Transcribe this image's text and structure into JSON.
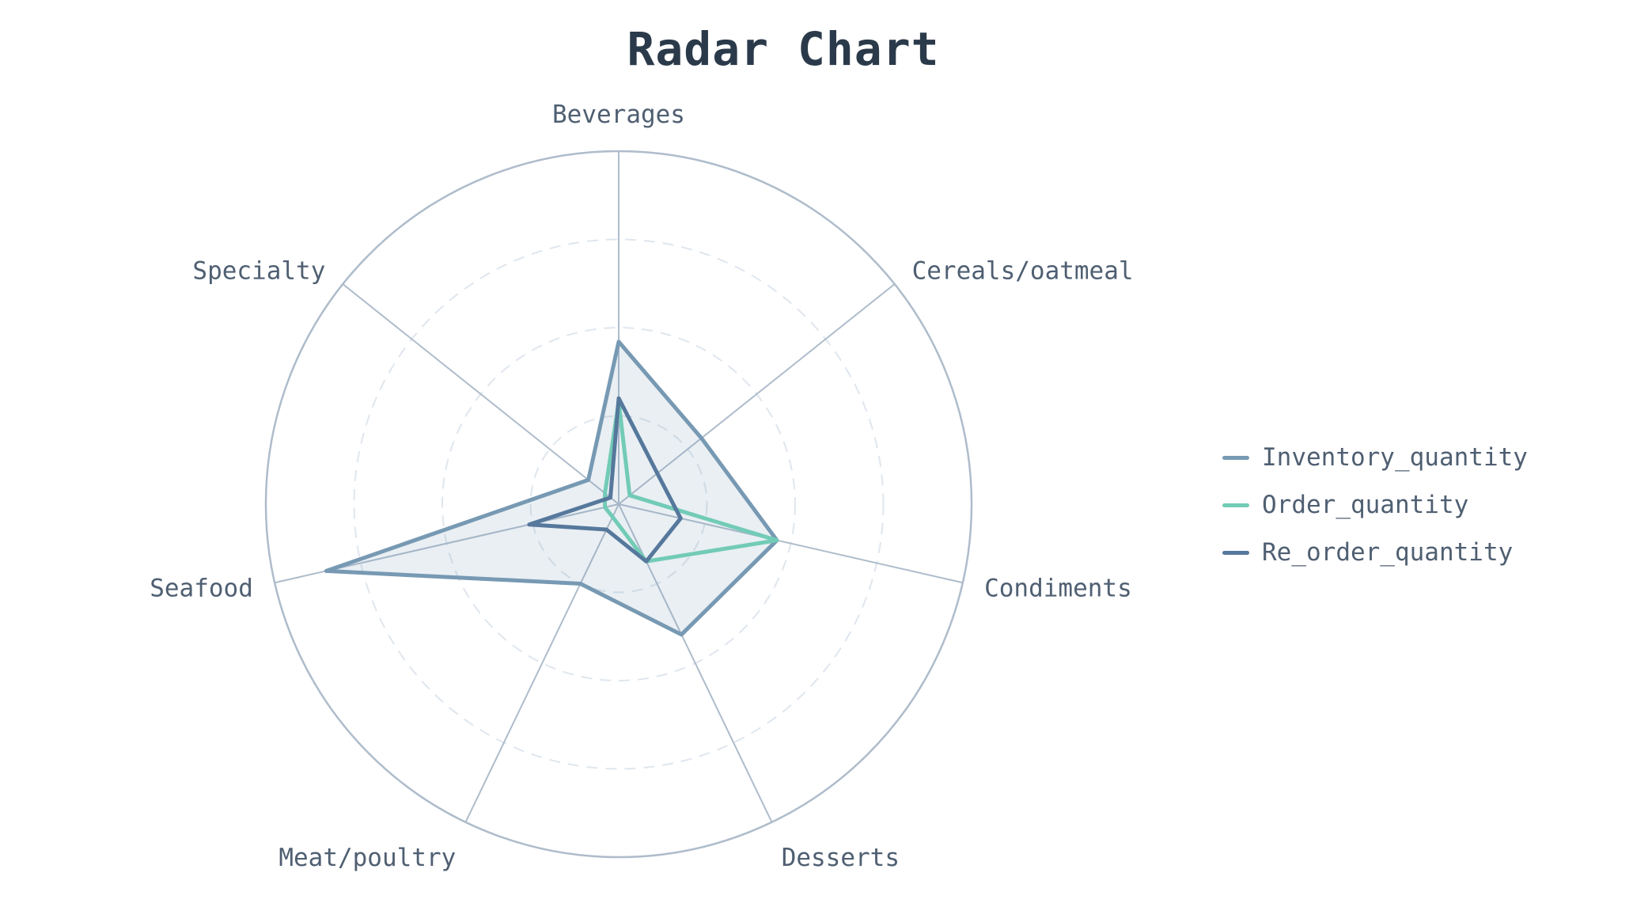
{
  "title": "Radar Chart",
  "chart_data": {
    "type": "radar",
    "title": "Radar Chart",
    "categories": [
      "Beverages",
      "Cereals/oatmeal",
      "Condiments",
      "Desserts",
      "Meat/poultry",
      "Seafood",
      "Specialty"
    ],
    "radial_range": [
      0,
      100
    ],
    "grid_levels": [
      25,
      50,
      75
    ],
    "legend_position": "right",
    "series": [
      {
        "name": "Inventory_quantity",
        "color": "#7799b3",
        "fill": true,
        "values": [
          46,
          30,
          46,
          41,
          25,
          85,
          11
        ]
      },
      {
        "name": "Order_quantity",
        "color": "#72cbb6",
        "fill": false,
        "values": [
          29,
          4,
          46,
          18,
          4,
          4,
          5
        ]
      },
      {
        "name": "Re_order_quantity",
        "color": "#56789c",
        "fill": false,
        "values": [
          30,
          14,
          18,
          18,
          8,
          26,
          3
        ]
      }
    ]
  }
}
